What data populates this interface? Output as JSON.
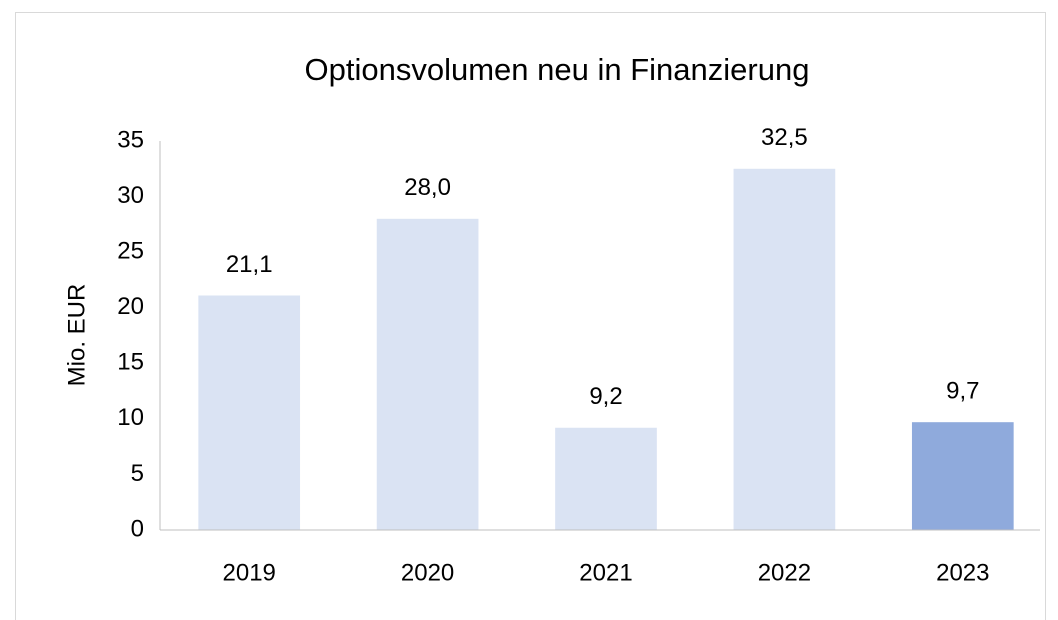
{
  "chart_data": {
    "type": "bar",
    "title": "Optionsvolumen neu in Finanzierung",
    "ylabel": "Mio. EUR",
    "categories": [
      "2019",
      "2020",
      "2021",
      "2022",
      "2023"
    ],
    "values": [
      21.1,
      28.0,
      9.2,
      32.5,
      9.7
    ],
    "value_labels": [
      "21,1",
      "28,0",
      "9,2",
      "32,5",
      "9,7"
    ],
    "colors": [
      "#dae3f3",
      "#dae3f3",
      "#dae3f3",
      "#dae3f3",
      "#8faadc"
    ],
    "ylim": [
      0,
      35
    ],
    "yticks": [
      0,
      5,
      10,
      15,
      20,
      25,
      30,
      35
    ],
    "grid": false
  }
}
